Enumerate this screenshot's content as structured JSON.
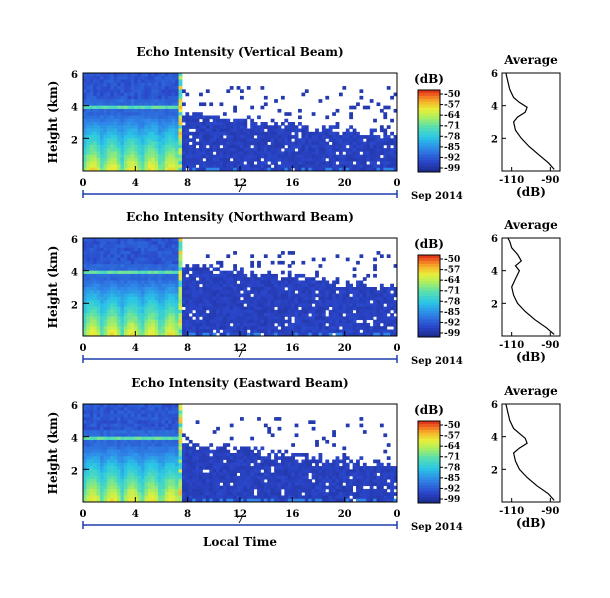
{
  "chart_data": [
    {
      "type": "heatmap",
      "title": "Echo Intensity (Vertical Beam)",
      "ylabel": "Height (km)",
      "yticks": [
        "2",
        "4",
        "6"
      ],
      "ylim": [
        0,
        6
      ],
      "xlim": [
        0,
        24
      ],
      "xticks": [
        "0",
        "4",
        "8",
        "12",
        "16",
        "20",
        "0"
      ],
      "date_day": "7",
      "date_month": "Sep 2014",
      "colorbar": {
        "label": "(dB)",
        "ticks": [
          "-50",
          "-57",
          "-64",
          "-71",
          "-78",
          "-85",
          "-92",
          "-99"
        ],
        "range": [
          -99,
          -50
        ]
      },
      "average_profile": {
        "title": "Average",
        "xlabel": "(dB)",
        "xticks": [
          "-110",
          "-90"
        ],
        "yticks": [
          "2",
          "4",
          "6"
        ],
        "xlim": [
          -115,
          -85
        ],
        "ylim": [
          0,
          6
        ],
        "height_km": [
          0.1,
          0.5,
          1.0,
          1.5,
          2.0,
          2.5,
          3.0,
          3.3,
          3.6,
          3.9,
          4.2,
          4.5,
          5.0,
          5.5,
          6.0
        ],
        "echo_db": [
          -88,
          -91,
          -96,
          -101,
          -105,
          -108,
          -109,
          -107,
          -103,
          -102,
          -106,
          -109,
          -111,
          -112,
          -113
        ]
      }
    },
    {
      "type": "heatmap",
      "title": "Echo Intensity (Northward Beam)",
      "ylabel": "Height (km)",
      "yticks": [
        "2",
        "4",
        "6"
      ],
      "ylim": [
        0,
        6
      ],
      "xlim": [
        0,
        24
      ],
      "xticks": [
        "0",
        "4",
        "8",
        "12",
        "16",
        "20",
        "0"
      ],
      "date_day": "7",
      "date_month": "Sep 2014",
      "colorbar": {
        "label": "(dB)",
        "ticks": [
          "-50",
          "-57",
          "-64",
          "-71",
          "-78",
          "-85",
          "-92",
          "-99"
        ],
        "range": [
          -99,
          -50
        ]
      },
      "average_profile": {
        "title": "Average",
        "xlabel": "(dB)",
        "xticks": [
          "-110",
          "-90"
        ],
        "yticks": [
          "2",
          "4",
          "6"
        ],
        "xlim": [
          -115,
          -85
        ],
        "ylim": [
          0,
          6
        ],
        "height_km": [
          0.1,
          0.5,
          1.0,
          1.5,
          2.0,
          2.5,
          3.0,
          3.5,
          4.0,
          4.3,
          4.6,
          5.0,
          5.4,
          5.8,
          6.0
        ],
        "echo_db": [
          -88,
          -92,
          -98,
          -103,
          -107,
          -109,
          -110,
          -108,
          -106,
          -108,
          -105,
          -107,
          -110,
          -111,
          -112
        ]
      }
    },
    {
      "type": "heatmap",
      "title": "Echo Intensity (Eastward Beam)",
      "ylabel": "Height (km)",
      "yticks": [
        "2",
        "4",
        "6"
      ],
      "ylim": [
        0,
        6
      ],
      "xlim": [
        0,
        24
      ],
      "xticks": [
        "0",
        "4",
        "8",
        "12",
        "16",
        "20",
        "0"
      ],
      "date_day": "7",
      "date_month": "Sep 2014",
      "xlabel": "Local Time",
      "colorbar": {
        "label": "(dB)",
        "ticks": [
          "-50",
          "-57",
          "-64",
          "-71",
          "-78",
          "-85",
          "-92",
          "-99"
        ],
        "range": [
          -99,
          -50
        ]
      },
      "average_profile": {
        "title": "Average",
        "xlabel": "(dB)",
        "xticks": [
          "-110",
          "-90"
        ],
        "yticks": [
          "2",
          "4",
          "6"
        ],
        "xlim": [
          -115,
          -85
        ],
        "ylim": [
          0,
          6
        ],
        "height_km": [
          0.1,
          0.5,
          1.0,
          1.5,
          2.0,
          2.5,
          3.0,
          3.3,
          3.6,
          3.9,
          4.2,
          4.5,
          5.0,
          5.5,
          6.0
        ],
        "echo_db": [
          -88,
          -91,
          -97,
          -102,
          -106,
          -108,
          -109,
          -106,
          -102,
          -103,
          -106,
          -109,
          -111,
          -112,
          -113
        ]
      }
    }
  ]
}
